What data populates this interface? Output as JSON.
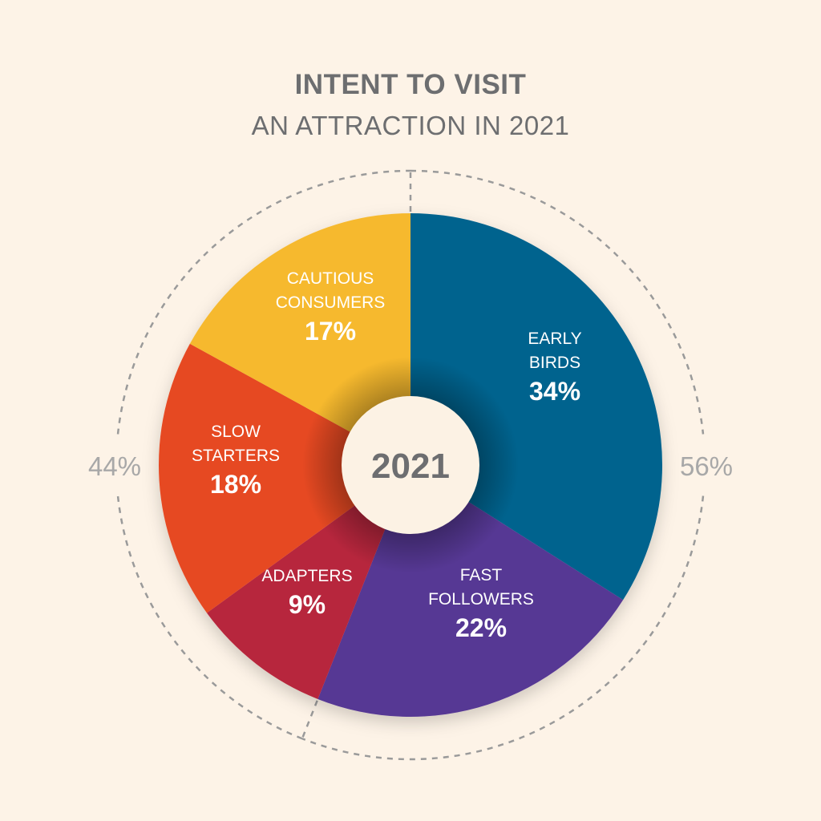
{
  "chart_data": {
    "type": "pie",
    "title": "INTENT TO VISIT",
    "subtitle": "AN ATTRACTION IN 2021",
    "center_label": "2021",
    "slices": [
      {
        "name_lines": [
          "EARLY",
          "BIRDS"
        ],
        "value": 34,
        "label": "34%",
        "color": "#06648e"
      },
      {
        "name_lines": [
          "FAST",
          "FOLLOWERS"
        ],
        "value": 22,
        "label": "22%",
        "color": "#573794"
      },
      {
        "name_lines": [
          "ADAPTERS"
        ],
        "value": 9,
        "label": "9%",
        "color": "#b7283e"
      },
      {
        "name_lines": [
          "SLOW",
          "STARTERS"
        ],
        "value": 18,
        "label": "18%",
        "color": "#e64a24"
      },
      {
        "name_lines": [
          "CAUTIOUS",
          "CONSUMERS"
        ],
        "value": 17,
        "label": "17%",
        "color": "#f6b92e"
      }
    ],
    "groups": [
      {
        "label": "56%",
        "value": 56,
        "side": "right"
      },
      {
        "label": "44%",
        "value": 44,
        "side": "left"
      }
    ],
    "colors": {
      "background": "#fdf3e7",
      "text_muted": "#6d6e70",
      "group_ring": "#9a9a9a",
      "group_label": "#a8a8a8",
      "center_fill": "#fcf2e4",
      "slice_label": "#ffffff"
    }
  }
}
